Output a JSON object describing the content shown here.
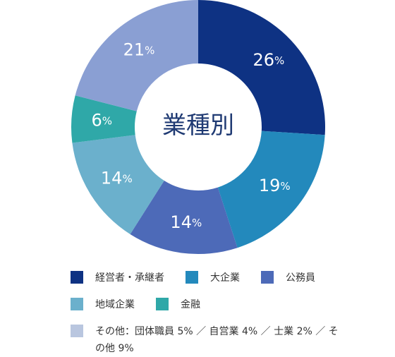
{
  "chart_data": {
    "type": "pie",
    "title": "業種別",
    "unit": "%",
    "slices": [
      {
        "name": "経営者・承継者",
        "value": 26,
        "color": "#0e3283"
      },
      {
        "name": "大企業",
        "value": 19,
        "color": "#2389bc"
      },
      {
        "name": "公務員",
        "value": 14,
        "color": "#4d6ab8"
      },
      {
        "name": "地域企業",
        "value": 14,
        "color": "#6bb0cc"
      },
      {
        "name": "金融",
        "value": 6,
        "color": "#2fa8a8"
      },
      {
        "name": "その他",
        "value": 21,
        "color": "#8a9fd3"
      }
    ]
  },
  "legend": {
    "other_label": "その他：団体職員 5% ／ 自営業 4% ／ 士業 2% ／ その他 9%",
    "other_swatch_color": "#b9c6df"
  }
}
